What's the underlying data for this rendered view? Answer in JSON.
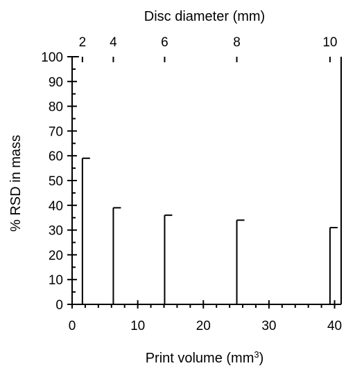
{
  "chart_data": {
    "type": "bar",
    "title": "",
    "xlabel": "Print volume (mm3)",
    "xlabel_main": "Print volume (mm",
    "xlabel_sup": "3",
    "xlabel_close": ")",
    "ylabel": "% RSD in mass",
    "top_xlabel": "Disc diameter (mm)",
    "xlim": [
      0,
      41
    ],
    "ylim": [
      0,
      100
    ],
    "x_ticks": [
      0,
      10,
      20,
      30,
      40
    ],
    "x_tick_labels": [
      "0",
      "10",
      "20",
      "30",
      "40"
    ],
    "y_ticks": [
      0,
      10,
      20,
      30,
      40,
      50,
      60,
      70,
      80,
      90,
      100
    ],
    "y_tick_labels": [
      "0",
      "10",
      "20",
      "30",
      "40",
      "50",
      "60",
      "70",
      "80",
      "90",
      "100"
    ],
    "top_ticks": [
      {
        "label": "2",
        "volume": 1.57
      },
      {
        "label": "4",
        "volume": 6.28
      },
      {
        "label": "6",
        "volume": 14.1
      },
      {
        "label": "8",
        "volume": 25.1
      },
      {
        "label": "10",
        "volume": 39.3
      }
    ],
    "points": [
      {
        "diameter": 2,
        "x": 1.57,
        "y": 59
      },
      {
        "diameter": 4,
        "x": 6.28,
        "y": 39
      },
      {
        "diameter": 6,
        "x": 14.1,
        "y": 36
      },
      {
        "diameter": 8,
        "x": 25.1,
        "y": 34
      },
      {
        "diameter": 10,
        "x": 39.3,
        "y": 31
      }
    ],
    "grid": false,
    "legend": "none"
  }
}
